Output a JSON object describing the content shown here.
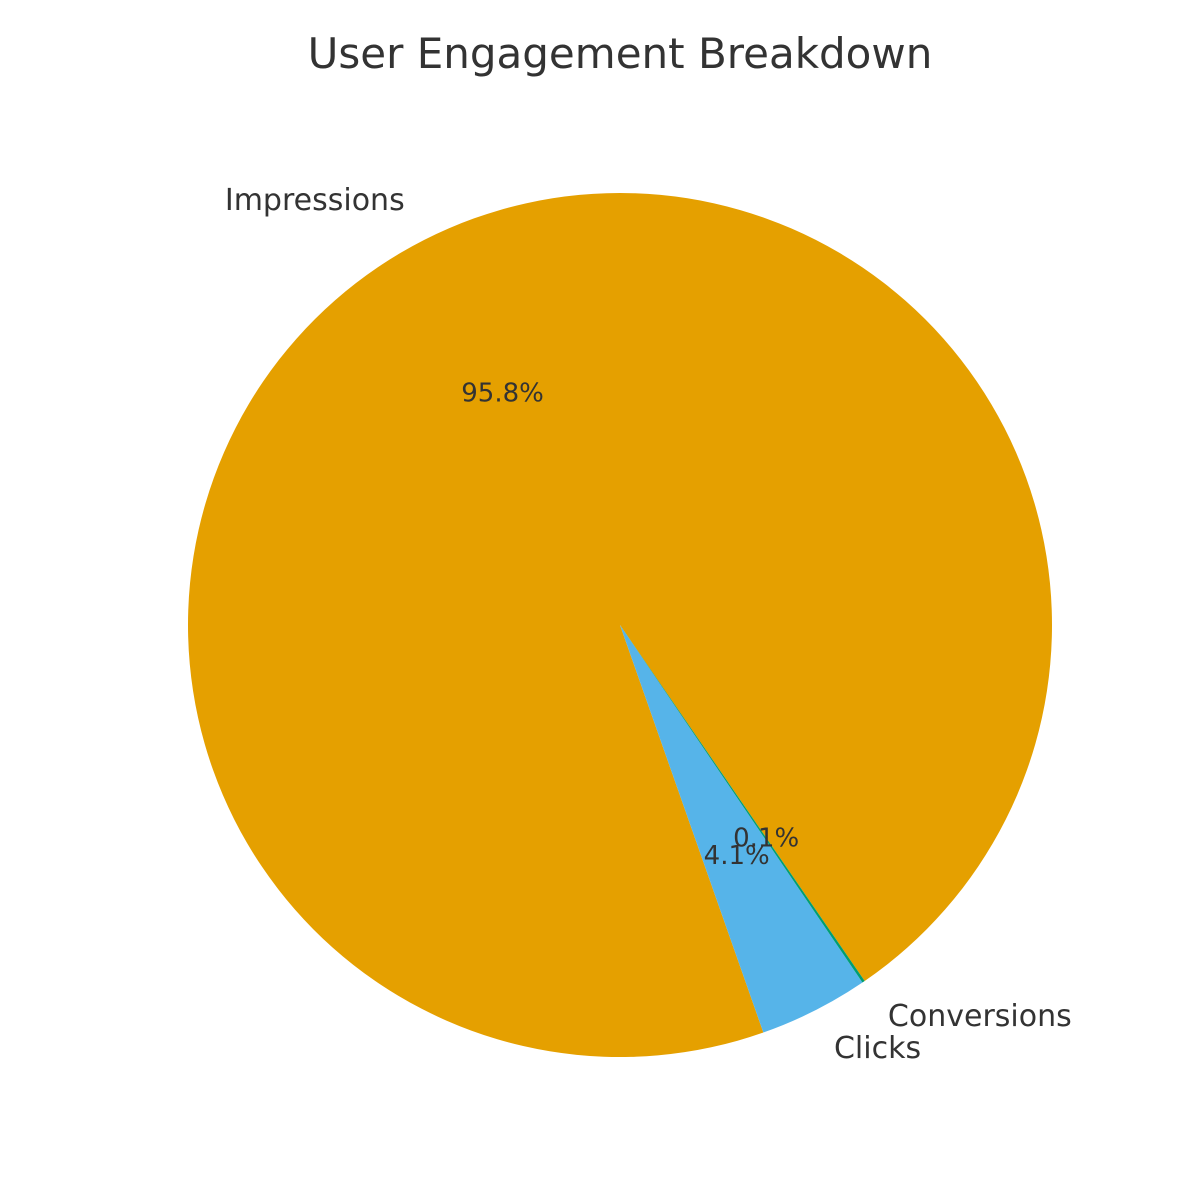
{
  "chart_data": {
    "type": "pie",
    "title": "User Engagement Breakdown",
    "categories": [
      "Impressions",
      "Clicks",
      "Conversions"
    ],
    "values": [
      95.8,
      4.1,
      0.1
    ],
    "value_labels": [
      "95.8%",
      "4.1%",
      "0.1%"
    ],
    "colors": [
      "#E5A000",
      "#56B4E9",
      "#009E73"
    ],
    "legend": "none"
  }
}
